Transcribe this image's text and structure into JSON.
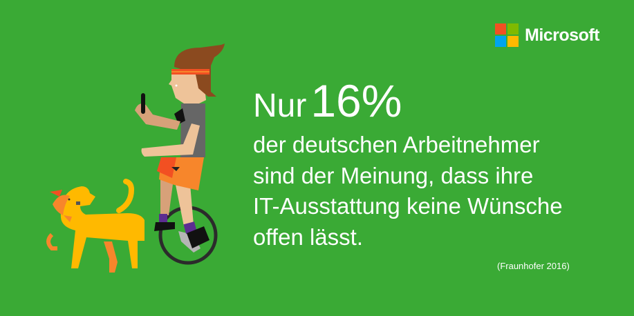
{
  "brand": {
    "name": "Microsoft",
    "logo_colors": [
      "#f25022",
      "#7fba00",
      "#00a4ef",
      "#ffb900"
    ]
  },
  "headline": {
    "prefix": "Nur",
    "percentage": "16%"
  },
  "body_lines": [
    "der deutschen Arbeitnehmer",
    "sind der Meinung, dass ihre",
    "IT-Ausstattung keine Wünsche",
    "offen lässt."
  ],
  "source": "(Fraunhofer 2016)",
  "colors": {
    "background": "#3aaa35",
    "text": "#ffffff"
  },
  "illustration": {
    "subjects": [
      "person-on-unicycle-with-phone",
      "dog"
    ]
  }
}
